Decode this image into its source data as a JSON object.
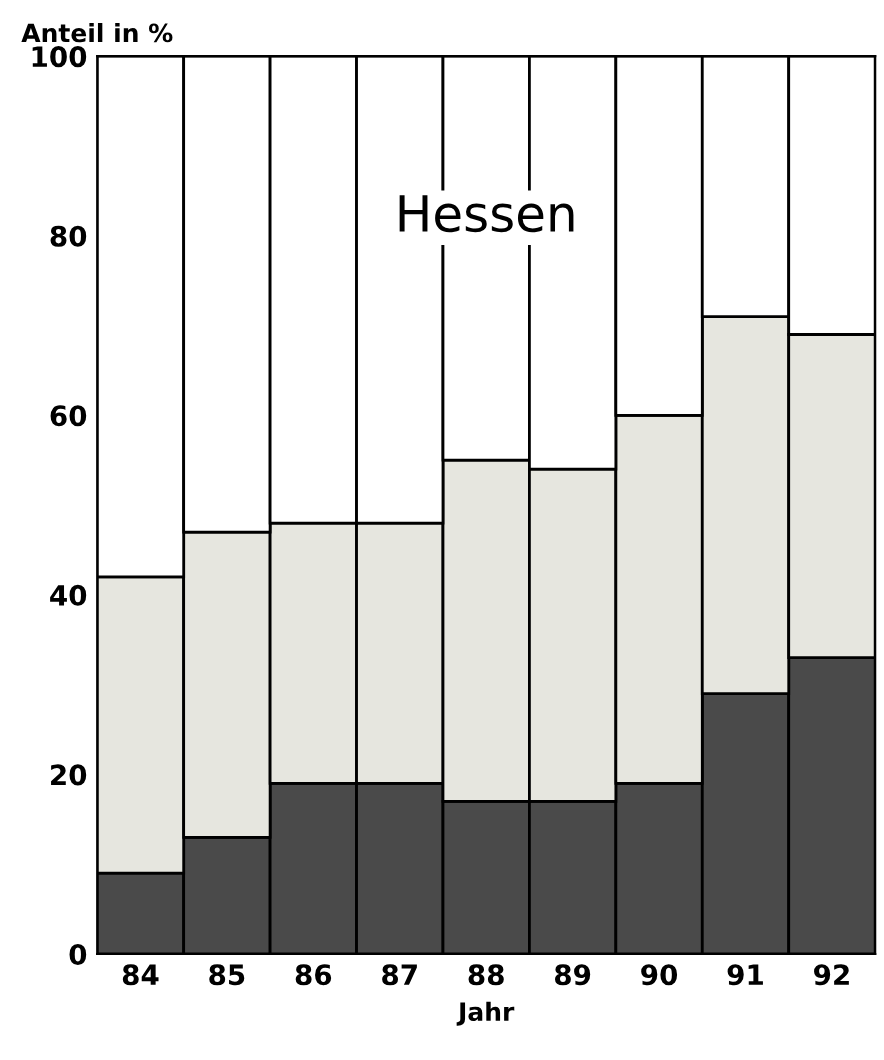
{
  "chart_data": {
    "type": "bar",
    "stacked": true,
    "ylabel": "Anteil in %",
    "xlabel": "Jahr",
    "annotations": [
      "Hessen"
    ],
    "categories": [
      "84",
      "85",
      "86",
      "87",
      "88",
      "89",
      "90",
      "91",
      "92"
    ],
    "series": [
      {
        "color": "#4a4a4a",
        "values": [
          9,
          13,
          19,
          19,
          17,
          17,
          19,
          29,
          33
        ]
      },
      {
        "color": "#e6e6df",
        "values": [
          33,
          34,
          29,
          29,
          38,
          37,
          41,
          42,
          36
        ]
      },
      {
        "color": "#ffffff",
        "values": [
          58,
          53,
          52,
          52,
          45,
          46,
          40,
          29,
          31
        ]
      }
    ],
    "ylim": [
      0,
      100
    ],
    "yticks": [
      0,
      20,
      40,
      60,
      80,
      100
    ],
    "grid": false,
    "legend": false
  }
}
